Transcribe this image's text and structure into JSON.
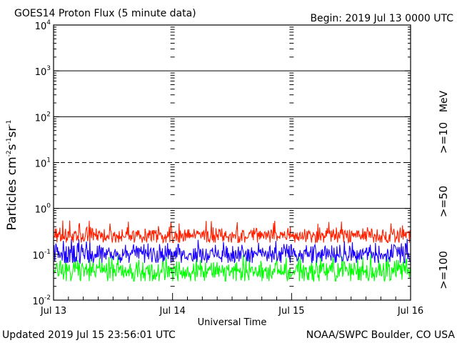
{
  "header": {
    "title": "GOES14 Proton Flux (5 minute data)",
    "begin": "Begin: 2019 Jul 13 0000 UTC"
  },
  "footer": {
    "updated": "Updated 2019 Jul 15 23:56:01 UTC",
    "credit": "NOAA/SWPC Boulder, CO USA"
  },
  "chart_data": {
    "type": "line",
    "title": "GOES14 Proton Flux (5 minute data)",
    "xlabel": "Universal Time",
    "ylabel": "Particles cm-2 s-1 sr-1",
    "yscale": "log",
    "ylim": [
      0.01,
      10000
    ],
    "xlim": [
      "2019-07-13T00:00Z",
      "2019-07-16T00:00Z"
    ],
    "x_ticks": [
      "Jul 13",
      "Jul 14",
      "Jul 15",
      "Jul 16"
    ],
    "y_ticks": [
      "10^-2",
      "10^-1",
      "10^0",
      "10^1",
      "10^2",
      "10^3",
      "10^4"
    ],
    "reference_lines": [
      {
        "y": 1,
        "style": "solid"
      },
      {
        "y": 10,
        "style": "dashed"
      },
      {
        "y": 100,
        "style": "solid"
      },
      {
        "y": 1000,
        "style": "solid"
      }
    ],
    "unit_label": "MeV",
    "series": [
      {
        "name": ">=10",
        "color": "#ff2000",
        "typical_min": 0.18,
        "typical_max": 0.38,
        "peak": 0.55
      },
      {
        "name": ">=50",
        "color": "#1a00ff",
        "typical_min": 0.065,
        "typical_max": 0.16,
        "peak": 0.22
      },
      {
        "name": ">=100",
        "color": "#00ff00",
        "typical_min": 0.026,
        "typical_max": 0.075,
        "peak": 0.1
      }
    ]
  }
}
